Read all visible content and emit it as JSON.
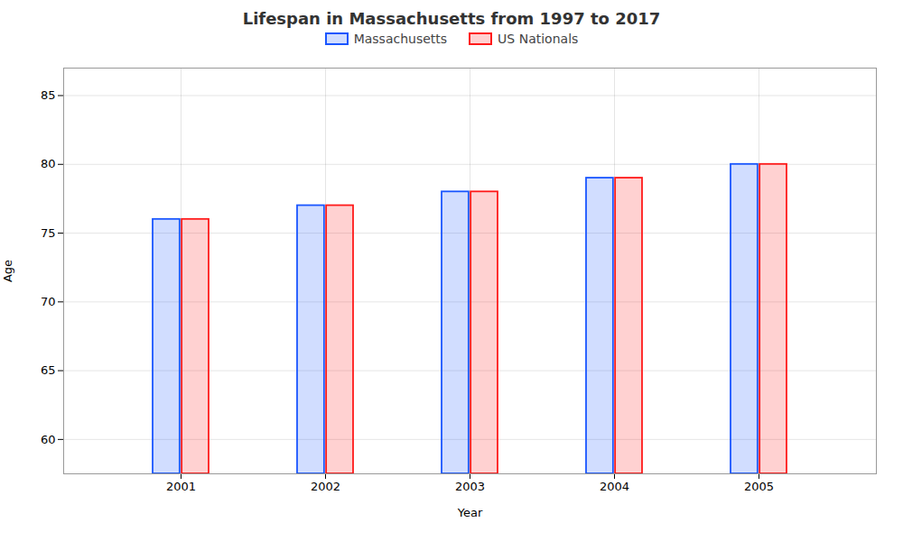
{
  "chart_data": {
    "type": "bar",
    "title": "Lifespan in Massachusetts from 1997 to 2017",
    "xlabel": "Year",
    "ylabel": "Age",
    "categories": [
      "2001",
      "2002",
      "2003",
      "2004",
      "2005"
    ],
    "series": [
      {
        "name": "Massachusetts",
        "color": "#1a56ff",
        "values": [
          76,
          77,
          78,
          79,
          80
        ]
      },
      {
        "name": "US Nationals",
        "color": "#ff1a1a",
        "values": [
          76,
          77,
          78,
          79,
          80
        ]
      }
    ],
    "ylim": [
      57.5,
      87
    ],
    "yticks": [
      60,
      65,
      70,
      75,
      80,
      85
    ],
    "grid": true,
    "legend": "top"
  }
}
